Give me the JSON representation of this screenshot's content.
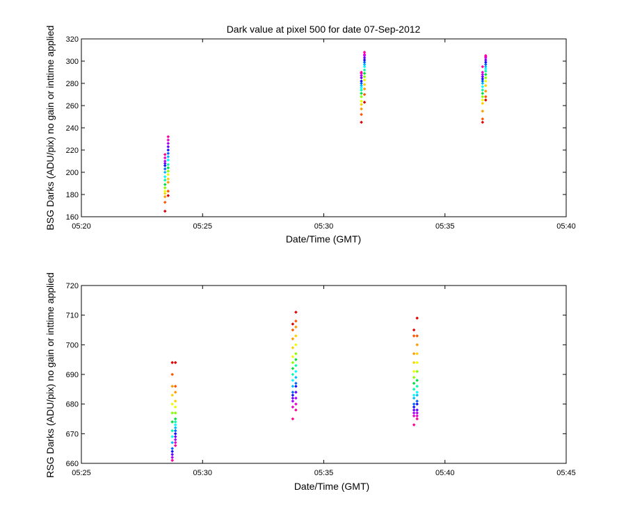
{
  "chart_data": [
    {
      "type": "scatter",
      "title": "Dark value at pixel 500 for date 07-Sep-2012",
      "xlabel": "Date/Time (GMT)",
      "ylabel": "BSG Darks (ADU/pix) no gain or inttime applied",
      "x_ticks": [
        "05:20",
        "05:25",
        "05:30",
        "05:35",
        "05:40"
      ],
      "xlim_minutes": [
        0,
        20
      ],
      "ylim": [
        160,
        320
      ],
      "y_ticks": [
        160,
        180,
        200,
        220,
        240,
        260,
        280,
        300,
        320
      ],
      "grid": false,
      "clusters": [
        {
          "columns": [
            {
              "x": 3.45,
              "y": [
                165,
                173,
                178,
                181,
                183,
                186,
                189,
                193,
                196,
                200,
                203,
                206,
                208,
                210,
                213,
                216
              ]
            },
            {
              "x": 3.58,
              "y": [
                179,
                183,
                191,
                194,
                198,
                201,
                204,
                207,
                211,
                214,
                217,
                220,
                223,
                226,
                229,
                232
              ]
            }
          ]
        },
        {
          "columns": [
            {
              "x": 11.55,
              "y": [
                245,
                252,
                257,
                261,
                264,
                268,
                271,
                274,
                276,
                278,
                280,
                282,
                285,
                287,
                289,
                290
              ]
            },
            {
              "x": 11.68,
              "y": [
                263,
                270,
                275,
                279,
                283,
                286,
                289,
                292,
                295,
                297,
                299,
                301,
                303,
                305,
                306,
                308
              ]
            }
          ]
        },
        {
          "columns": [
            {
              "x": 16.55,
              "y": [
                245,
                248,
                255,
                262,
                265,
                268,
                271,
                274,
                277,
                280,
                282,
                284,
                286,
                288,
                290,
                295
              ]
            },
            {
              "x": 16.68,
              "y": [
                265,
                268,
                273,
                278,
                282,
                285,
                288,
                291,
                293,
                295,
                297,
                299,
                301,
                303,
                304,
                305
              ]
            }
          ]
        }
      ]
    },
    {
      "type": "scatter",
      "title": "",
      "xlabel": "Date/Time (GMT)",
      "ylabel": "RSG Darks (ADU/pix) no gain or inttime applied",
      "x_ticks": [
        "05:25",
        "05:30",
        "05:35",
        "05:40",
        "05:45"
      ],
      "xlim_minutes": [
        0,
        20
      ],
      "ylim": [
        660,
        720
      ],
      "y_ticks": [
        660,
        670,
        680,
        690,
        700,
        710,
        720
      ],
      "grid": false,
      "clusters": [
        {
          "columns": [
            {
              "x": 3.75,
              "y": [
                694,
                690,
                686,
                683,
                680,
                677,
                674,
                671,
                669,
                667,
                665,
                664,
                663,
                662,
                661,
                661
              ]
            },
            {
              "x": 3.88,
              "y": [
                694,
                686,
                684,
                681,
                679,
                677,
                675,
                674,
                673,
                672,
                671,
                670,
                669,
                668,
                667,
                666
              ]
            }
          ]
        },
        {
          "columns": [
            {
              "x": 8.72,
              "y": [
                707,
                705,
                702,
                699,
                696,
                694,
                692,
                690,
                688,
                686,
                684,
                683,
                682,
                681,
                679,
                675
              ]
            },
            {
              "x": 8.85,
              "y": [
                711,
                708,
                706,
                703,
                700,
                697,
                695,
                693,
                691,
                689,
                687,
                686,
                684,
                682,
                680,
                678
              ]
            }
          ]
        },
        {
          "columns": [
            {
              "x": 13.72,
              "y": [
                705,
                703,
                697,
                694,
                691,
                689,
                687,
                685,
                683,
                682,
                680,
                679,
                678,
                677,
                676,
                673
              ]
            },
            {
              "x": 13.85,
              "y": [
                709,
                703,
                700,
                697,
                694,
                691,
                688,
                686,
                684,
                683,
                681,
                680,
                678,
                677,
                676,
                675
              ]
            }
          ]
        }
      ]
    }
  ],
  "colors": {
    "rainbow": [
      "#e00000",
      "#ff5500",
      "#ff9900",
      "#ffd000",
      "#e8ff00",
      "#88ff00",
      "#00e040",
      "#00ffaa",
      "#00ffff",
      "#00bbff",
      "#0066ff",
      "#1010ff",
      "#6600ff",
      "#aa00ff",
      "#ee00cc",
      "#ff0099"
    ]
  }
}
